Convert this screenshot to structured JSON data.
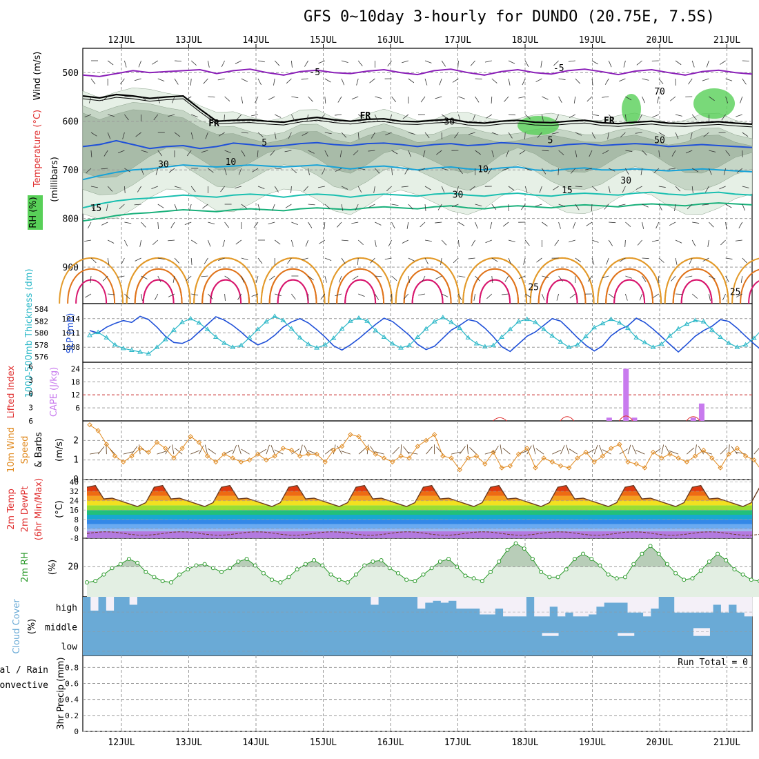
{
  "title": "GFS 0~10day 3-hourly for DUNDO (20.75E, 7.5S)",
  "colors": {
    "purple": "#8a1fb8",
    "black": "#000000",
    "blue": "#1f50d8",
    "lightblue": "#17a3d8",
    "teal": "#19bfb0",
    "green": "#18b07a",
    "orange": "#e39a2a",
    "darkorange": "#e0741b",
    "magenta": "#d8176e",
    "cyan": "#2cb8c8",
    "rh_light": "#e6f0e6",
    "rh_mid": "#c6d6c6",
    "rh_dark": "#a8bba8",
    "rh_green": "#58d058",
    "cape": "#c87aee",
    "li": "#e03030",
    "wind": "#e08a20",
    "cloud": "#6aaad6",
    "precip_total": "#20a020"
  },
  "chart_data": [
    {
      "name": "upper_air",
      "type": "contour",
      "xlabel": "",
      "ylabel_parts": [
        "Wind (m/s)",
        "Temperature (°C)",
        "RH (%)",
        "(millibars)"
      ],
      "x_ticks": [
        "12JUL",
        "13JUL",
        "14JUL",
        "15JUL",
        "16JUL",
        "17JUL",
        "18JUL",
        "19JUL",
        "20JUL",
        "21JUL"
      ],
      "y_ticks": [
        500,
        600,
        700,
        800,
        900
      ],
      "ylim": [
        450,
        975
      ],
      "contour_labels": [
        {
          "text": "-5",
          "x": "14JUL 21",
          "y": 505,
          "color": "purple"
        },
        {
          "text": "-5",
          "x": "18JUL 12",
          "y": 497,
          "color": "purple"
        },
        {
          "text": "FR",
          "x": "13JUL 9",
          "y": 610,
          "color": "black"
        },
        {
          "text": "FR",
          "x": "15JUL 15",
          "y": 595,
          "color": "black"
        },
        {
          "text": "FR",
          "x": "19JUL 6",
          "y": 605,
          "color": "black"
        },
        {
          "text": "5",
          "x": "14JUL 3",
          "y": 650,
          "color": "blue"
        },
        {
          "text": "5",
          "x": "18JUL 9",
          "y": 645,
          "color": "blue"
        },
        {
          "text": "10",
          "x": "13JUL 15",
          "y": 690,
          "color": "lightblue"
        },
        {
          "text": "10",
          "x": "17JUL 9",
          "y": 705,
          "color": "lightblue"
        },
        {
          "text": "15",
          "x": "11JUL 15",
          "y": 785,
          "color": "teal"
        },
        {
          "text": "15",
          "x": "18JUL 15",
          "y": 748,
          "color": "teal"
        },
        {
          "text": "25",
          "x": "18JUL 3",
          "y": 947,
          "color": "orange"
        },
        {
          "text": "25",
          "x": "21JUL 3",
          "y": 957,
          "color": "orange"
        },
        {
          "text": "30",
          "x": "16JUL 21",
          "y": 607,
          "color": "gray"
        },
        {
          "text": "30",
          "x": "17JUL 0",
          "y": 757,
          "color": "gray"
        },
        {
          "text": "30",
          "x": "12JUL 15",
          "y": 695,
          "color": "gray"
        },
        {
          "text": "30",
          "x": "19JUL 12",
          "y": 728,
          "color": "gray"
        },
        {
          "text": "50",
          "x": "20JUL 0",
          "y": 645,
          "color": "gray"
        },
        {
          "text": "70",
          "x": "20JUL 0",
          "y": 545,
          "color": "gray"
        }
      ],
      "isotherms": [
        {
          "value": -5,
          "color": "purple",
          "pressures": [
            505,
            508,
            502,
            496,
            500,
            498,
            496,
            494,
            502,
            496,
            493,
            500,
            505,
            498,
            495,
            500,
            502,
            497,
            494,
            500,
            504,
            496,
            493,
            500,
            505,
            498,
            494,
            500,
            503,
            496,
            493,
            498,
            504,
            497,
            494,
            500,
            505,
            498,
            495,
            500,
            503
          ]
        },
        {
          "value": 0,
          "color": "black",
          "pressures": [
            548,
            552,
            545,
            548,
            553,
            550,
            548,
            575,
            600,
            598,
            597,
            600,
            602,
            596,
            592,
            597,
            600,
            596,
            595,
            600,
            601,
            598,
            596,
            602,
            604,
            600,
            598,
            602,
            603,
            600,
            598,
            603,
            605,
            602,
            600,
            604,
            605,
            603,
            601,
            604,
            606
          ]
        },
        {
          "value": 5,
          "color": "blue",
          "pressures": [
            652,
            648,
            640,
            648,
            656,
            652,
            650,
            656,
            652,
            645,
            648,
            652,
            650,
            646,
            644,
            648,
            650,
            646,
            645,
            648,
            652,
            648,
            646,
            650,
            648,
            644,
            646,
            650,
            652,
            648,
            646,
            650,
            648,
            646,
            648,
            652,
            650,
            648,
            650,
            652,
            654
          ]
        },
        {
          "value": 10,
          "color": "lightblue",
          "pressures": [
            720,
            712,
            705,
            700,
            698,
            694,
            690,
            692,
            694,
            692,
            690,
            692,
            694,
            692,
            690,
            694,
            698,
            694,
            692,
            696,
            700,
            696,
            694,
            698,
            700,
            696,
            694,
            700,
            702,
            698,
            696,
            700,
            700,
            698,
            700,
            702,
            700,
            698,
            700,
            702,
            704
          ]
        },
        {
          "value": 15,
          "color": "teal",
          "pressures": [
            778,
            770,
            764,
            760,
            758,
            755,
            752,
            754,
            756,
            752,
            750,
            752,
            756,
            752,
            750,
            752,
            756,
            752,
            750,
            752,
            754,
            750,
            748,
            752,
            754,
            750,
            748,
            752,
            754,
            750,
            748,
            750,
            752,
            748,
            746,
            750,
            752,
            748,
            746,
            750,
            752
          ]
        },
        {
          "value": 20,
          "color": "green",
          "pressures": [
            805,
            800,
            794,
            790,
            788,
            785,
            782,
            784,
            786,
            782,
            780,
            782,
            784,
            780,
            778,
            780,
            782,
            778,
            776,
            778,
            780,
            776,
            774,
            778,
            780,
            776,
            774,
            776,
            778,
            774,
            772,
            774,
            776,
            772,
            770,
            772,
            774,
            770,
            768,
            770,
            772
          ]
        }
      ],
      "surface_thermals": {
        "period_days": 1,
        "colors": [
          "orange",
          "darkorange",
          "magenta"
        ],
        "tops": [
          850,
          880,
          910
        ]
      }
    },
    {
      "name": "slp_thickness",
      "type": "line",
      "ylabel_left": "1000-500mb Thickness (dm)",
      "ylabel_right": "SLP (mb)",
      "left_ticks": [
        576,
        578,
        580,
        582,
        584
      ],
      "right_ticks": [
        1008,
        1011,
        1014
      ],
      "series": [
        {
          "label": "SLP (mb)",
          "color": "blue",
          "values": [
            1011.5,
            1011.0,
            1012.2,
            1013.0,
            1013.6,
            1013.2,
            1014.5,
            1013.8,
            1012.2,
            1010.3,
            1009.0,
            1008.8,
            1009.6,
            1011.2,
            1012.8,
            1014.4,
            1013.7,
            1012.6,
            1011.2,
            1009.6,
            1008.5,
            1009.2,
            1010.5,
            1012.2,
            1013.3,
            1014.0,
            1013.1,
            1011.7,
            1010.1,
            1008.3,
            1007.4,
            1008.5,
            1009.8,
            1011.3,
            1012.8,
            1014.1,
            1013.4,
            1012.0,
            1010.5,
            1008.6,
            1007.5,
            1008.2,
            1009.9,
            1011.6,
            1012.6,
            1013.8,
            1013.4,
            1012.0,
            1010.2,
            1008.1,
            1007.1,
            1008.7,
            1010.3,
            1011.2,
            1012.6,
            1014.0,
            1013.5,
            1011.8,
            1010.0,
            1008.4,
            1007.2,
            1008.3,
            1010.4,
            1011.7,
            1012.5,
            1014.1,
            1013.2,
            1011.8,
            1010.2,
            1008.6,
            1007.0,
            1008.6,
            1010.3,
            1011.5,
            1012.4,
            1013.8,
            1013.4,
            1012.0,
            1010.3,
            1008.7,
            1007.2,
            1009.0,
            1010.2,
            1012.7,
            1013.6,
            1014.0
          ]
        },
        {
          "label": "1000-500mb Thickness (dm)",
          "color": "cyan",
          "values": [
            579.6,
            580.1,
            579.2,
            578.0,
            577.4,
            577.1,
            576.8,
            576.5,
            577.6,
            578.9,
            580.5,
            581.8,
            582.4,
            581.7,
            580.6,
            579.3,
            578.3,
            577.6,
            577.9,
            579.2,
            580.6,
            581.9,
            582.8,
            582.1,
            580.7,
            579.2,
            578.1,
            577.5,
            578.0,
            579.1,
            580.7,
            582.0,
            582.5,
            582.0,
            580.4,
            579.3,
            578.2,
            577.5,
            577.9,
            579.3,
            580.7,
            581.9,
            582.6,
            581.8,
            580.8,
            579.2,
            578.2,
            577.7,
            577.9,
            579.3,
            580.6,
            581.9,
            582.3,
            581.8,
            580.6,
            579.5,
            578.5,
            577.6,
            578.0,
            579.4,
            580.9,
            581.6,
            582.3,
            581.7,
            580.8,
            579.2,
            578.4,
            577.6,
            578.1,
            579.5,
            580.7,
            581.5,
            582.1,
            581.9,
            580.5,
            579.3,
            578.3,
            577.6,
            578.0,
            579.1,
            580.7,
            581.8,
            582.2,
            581.2,
            579.5,
            576.5
          ]
        }
      ]
    },
    {
      "name": "cape_li",
      "type": "bar",
      "ylabel_left": "Lifted Index",
      "ylabel_right": "CAPE (J/kg)",
      "left_ticks": [
        -6,
        -3,
        0,
        3,
        6
      ],
      "right_ticks": [
        6,
        12,
        18,
        24
      ],
      "cape": [
        {
          "x": "19JUL 6",
          "value": 1.5
        },
        {
          "x": "19JUL 12",
          "value": 24
        },
        {
          "x": "19JUL 15",
          "value": 1.5
        },
        {
          "x": "20JUL 15",
          "value": 8
        },
        {
          "x": "20JUL 12",
          "value": 1.5
        }
      ],
      "li_bumps": [
        {
          "x": "17JUL 15",
          "value": 5.5
        },
        {
          "x": "18JUL 15",
          "value": 5.0
        },
        {
          "x": "19JUL 12",
          "value": 4.7
        },
        {
          "x": "20JUL 12",
          "value": 5.0
        }
      ]
    },
    {
      "name": "wind10m",
      "type": "line",
      "ylabel": "10m Wind Speed & Barbs (m/s)",
      "ticks": [
        0,
        1,
        2
      ],
      "ylim": [
        0,
        3
      ],
      "values": [
        2.8,
        2.5,
        1.8,
        1.2,
        0.9,
        1.2,
        1.6,
        1.4,
        1.9,
        1.6,
        1.1,
        1.6,
        2.2,
        1.9,
        1.2,
        0.9,
        1.3,
        1.1,
        0.9,
        1.0,
        1.3,
        1.0,
        1.2,
        1.6,
        1.5,
        1.2,
        1.3,
        1.3,
        0.9,
        1.5,
        1.7,
        2.3,
        2.2,
        1.6,
        1.3,
        1.1,
        0.9,
        1.2,
        1.1,
        1.7,
        2.0,
        2.3,
        1.2,
        1.1,
        0.5,
        1.1,
        1.2,
        0.8,
        1.4,
        0.6,
        0.7,
        1.3,
        1.6,
        0.6,
        1.1,
        0.9,
        0.7,
        0.6,
        1.1,
        1.4,
        0.9,
        1.2,
        1.6,
        1.8,
        0.9,
        0.8,
        0.6,
        1.4,
        1.1,
        1.3,
        1.1,
        0.9,
        1.2,
        1.5,
        1.1,
        0.6,
        1.3,
        1.6,
        1.2,
        1.0,
        0.4,
        0.9,
        1.1,
        1.3,
        1.6,
        2.2
      ]
    },
    {
      "name": "temp2m",
      "type": "area",
      "ylabel": "2m Temp 2m DewPt (6hr Min/Max) (°C)",
      "ticks": [
        -8,
        0,
        8,
        16,
        24,
        32,
        40
      ],
      "ylim": [
        -8,
        42
      ],
      "temp_min": 19,
      "temp_max": 38,
      "dewpt": -4
    },
    {
      "name": "rh2m",
      "type": "area",
      "ylabel": "2m RH (%)",
      "ticks": [
        20
      ],
      "ylim": [
        0,
        42
      ],
      "values": [
        8,
        9,
        14,
        19,
        22,
        26,
        23,
        16,
        12,
        9,
        8,
        14,
        18,
        21,
        22,
        19,
        16,
        19,
        24,
        26,
        21,
        15,
        10,
        8,
        12,
        18,
        22,
        25,
        21,
        14,
        10,
        8,
        14,
        21,
        24,
        25,
        19,
        15,
        10,
        9,
        14,
        19,
        24,
        26,
        20,
        13,
        11,
        9,
        16,
        24,
        33,
        38,
        34,
        26,
        16,
        12,
        12,
        18,
        26,
        30,
        26,
        21,
        14,
        11,
        12,
        22,
        30,
        36,
        30,
        22,
        15,
        10,
        11,
        17,
        24,
        30,
        25,
        18,
        14,
        10,
        9,
        12,
        22,
        30,
        37,
        34
      ]
    },
    {
      "name": "cloud",
      "type": "area",
      "ylabel": "Cloud Cover (%)",
      "levels": [
        "high",
        "middle",
        "low"
      ],
      "high": [
        100,
        30,
        100,
        30,
        100,
        100,
        60,
        100,
        100,
        100,
        100,
        100,
        100,
        100,
        100,
        100,
        100,
        100,
        100,
        100,
        100,
        100,
        100,
        100,
        100,
        100,
        100,
        100,
        100,
        100,
        100,
        100,
        100,
        100,
        100,
        100,
        100,
        60,
        100,
        100,
        100,
        100,
        100,
        40,
        70,
        80,
        70,
        80,
        40,
        40,
        40,
        10,
        10,
        40,
        0,
        0,
        0,
        100,
        0,
        0,
        50,
        0,
        20,
        0,
        0,
        10,
        50,
        70,
        70,
        70,
        20,
        20,
        0,
        40,
        100,
        100,
        20,
        20,
        20,
        20,
        20,
        60,
        20,
        60,
        20,
        0
      ],
      "middle": [
        0,
        0,
        0,
        0,
        0,
        0,
        0,
        0,
        0,
        0,
        0,
        0,
        0,
        0,
        0,
        0,
        0,
        0,
        0,
        0,
        0,
        0,
        0,
        0,
        0,
        0,
        0,
        0,
        0,
        0,
        0,
        0,
        0,
        0,
        0,
        0,
        0,
        0,
        0,
        0,
        0,
        0,
        0,
        0,
        0,
        0,
        0,
        0,
        0,
        0,
        0,
        0,
        0,
        0,
        0,
        0,
        0,
        0,
        0,
        0,
        0,
        0,
        0,
        0,
        0,
        0,
        0,
        0,
        0,
        0,
        0,
        0,
        0,
        0,
        0,
        0,
        0,
        0,
        0,
        0,
        0,
        0,
        0,
        0,
        0,
        0
      ],
      "middle_gaps": [
        {
          "x": "18JUL 9",
          "value": 15
        },
        {
          "x": "19JUL 12",
          "value": 15
        },
        {
          "x": "20JUL 15",
          "value": 40
        }
      ]
    },
    {
      "name": "precip",
      "type": "bar",
      "ylabel_left": "Total / Rain",
      "ylabel_left2": "Convective",
      "ylabel": "3hr Precip (mm)",
      "ticks": [
        0,
        0.2,
        0.4,
        0.6,
        0.8
      ],
      "ylim": [
        0,
        0.95
      ],
      "run_total": "Run Total = 0",
      "values": []
    }
  ]
}
